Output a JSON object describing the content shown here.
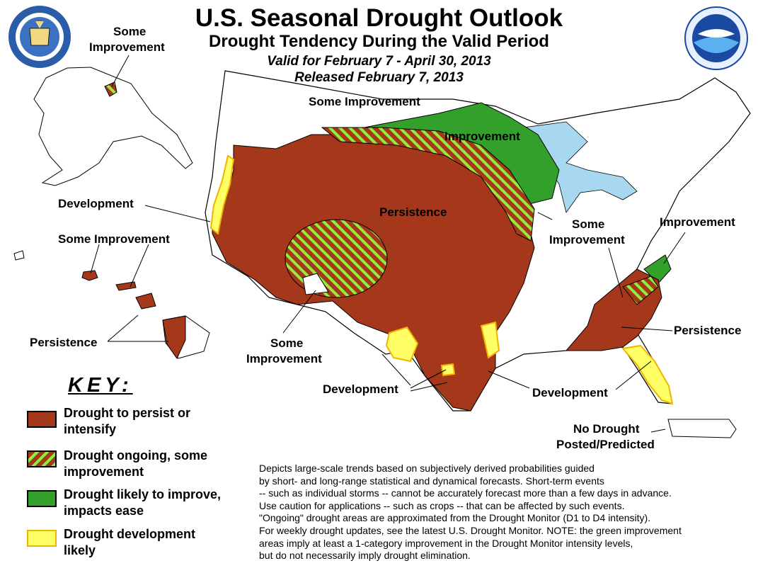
{
  "header": {
    "title": "U.S. Seasonal Drought Outlook",
    "subtitle": "Drought Tendency During the Valid Period",
    "valid": "Valid for February 7 - April 30, 2013",
    "released": "Released February 7, 2013"
  },
  "colors": {
    "persist": "#a5381a",
    "improve": "#32a02b",
    "develop": "#ffff66",
    "develop_border": "#f0b400",
    "water": "#a8d8f0",
    "hatch_stripe": "#90ee3c"
  },
  "logos": {
    "commerce_seal": "department-of-commerce-seal",
    "noaa_logo": "noaa-logo"
  },
  "map_labels": {
    "alaska_some_improvement_1": "Some",
    "alaska_some_improvement_2": "Improvement",
    "some_improvement_north": "Some Improvement",
    "improvement_north": "Improvement",
    "development_west": "Development",
    "some_improvement_hawaii": "Some Improvement",
    "persistence_center": "Persistence",
    "some_improvement_mid_1": "Some",
    "some_improvement_mid_2": "Improvement",
    "improvement_east": "Improvement",
    "persistence_hawaii": "Persistence",
    "some_improvement_sw_1": "Some",
    "some_improvement_sw_2": "Improvement",
    "development_texas": "Development",
    "development_gulf": "Development",
    "persistence_southeast": "Persistence",
    "no_drought_1": "No Drought",
    "no_drought_2": "Posted/Predicted"
  },
  "key": {
    "title": "KEY:",
    "items": [
      {
        "line1": "Drought to persist or",
        "line2": "intensify"
      },
      {
        "line1": "Drought ongoing, some",
        "line2": "improvement"
      },
      {
        "line1": "Drought likely to improve,",
        "line2": "impacts ease"
      },
      {
        "line1": "Drought development",
        "line2": "likely"
      }
    ]
  },
  "disclaimer": [
    "Depicts large-scale trends based on subjectively derived probabilities guided",
    "by short- and long-range statistical and dynamical forecasts. Short-term events",
    "-- such as individual storms -- cannot be accurately forecast more than a few days in advance.",
    "Use caution for applications -- such as crops -- that can be affected by such events.",
    "\"Ongoing\" drought areas are approximated from the Drought Monitor (D1 to D4 intensity).",
    "For weekly drought updates, see the latest U.S. Drought Monitor. NOTE: the green improvement",
    "areas imply at least a 1-category improvement in the Drought Monitor intensity levels,",
    "but do not necessarily imply drought elimination."
  ]
}
